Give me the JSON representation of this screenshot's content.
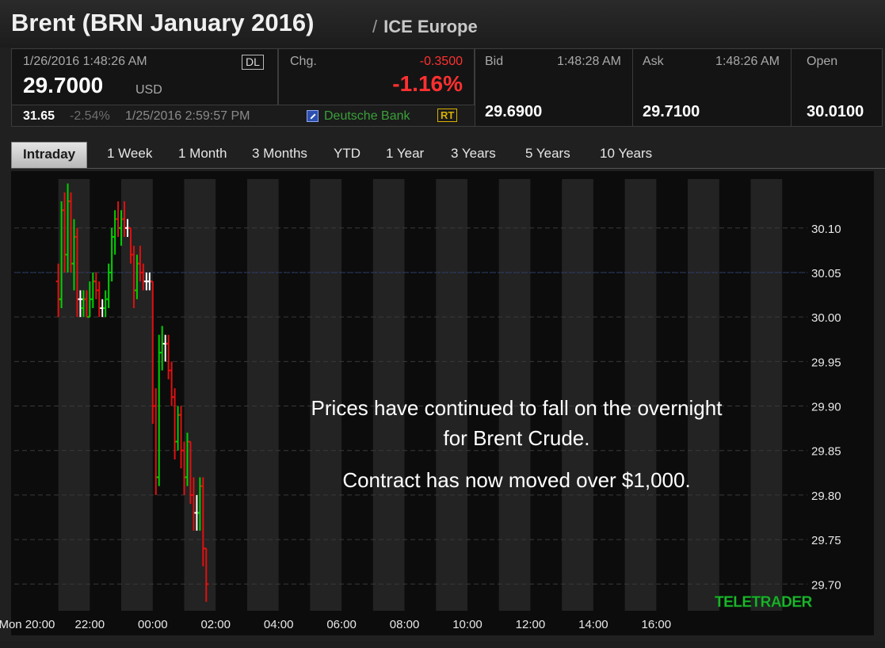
{
  "header": {
    "title": "Brent (BRN January 2016)",
    "separator": "/",
    "exchange": "ICE Europe"
  },
  "quote": {
    "last_timestamp": "1/26/2016 1:48:26 AM",
    "last_badge": "DL",
    "last_price": "29.7000",
    "currency": "USD",
    "change_label": "Chg.",
    "change_abs": "-0.3500",
    "change_pct": "-1.16%",
    "prev_close": "31.65",
    "prev_change_pct": "-2.54%",
    "prev_timestamp": "1/25/2016 2:59:57 PM",
    "source": "Deutsche Bank",
    "source_badge": "RT",
    "bid_label": "Bid",
    "bid_time": "1:48:28 AM",
    "bid": "29.6900",
    "ask_label": "Ask",
    "ask_time": "1:48:26 AM",
    "ask": "29.7100",
    "open_label": "Open",
    "open": "30.0100"
  },
  "tabs": [
    {
      "label": "Intraday",
      "active": true
    },
    {
      "label": "1 Week",
      "active": false
    },
    {
      "label": "1 Month",
      "active": false
    },
    {
      "label": "3 Months",
      "active": false
    },
    {
      "label": "YTD",
      "active": false
    },
    {
      "label": "1 Year",
      "active": false
    },
    {
      "label": "3 Years",
      "active": false
    },
    {
      "label": "5 Years",
      "active": false
    },
    {
      "label": "10 Years",
      "active": false
    }
  ],
  "annotation": {
    "line1": "Prices have continued to fall on the overnight",
    "line2": "for Brent Crude.",
    "line3": "Contract has now moved over $1,000."
  },
  "watermark": "TELETRADER",
  "colors": {
    "up": "#00d000",
    "down": "#e01010",
    "flat": "#ffffff",
    "reference_line": "#2d3f78",
    "negative": "#ff3030"
  },
  "chart_data": {
    "type": "ohlc",
    "x_tick_labels": [
      "Mon 20:00",
      "22:00",
      "00:00",
      "02:00",
      "04:00",
      "06:00",
      "08:00",
      "10:00",
      "12:00",
      "14:00",
      "16:00"
    ],
    "x_range_hours": [
      19.6,
      44.8
    ],
    "y_tick_labels": [
      "29.70",
      "29.75",
      "29.80",
      "29.85",
      "29.90",
      "29.95",
      "30.00",
      "30.05",
      "30.10"
    ],
    "y_ticks": [
      29.7,
      29.75,
      29.8,
      29.85,
      29.9,
      29.95,
      30.0,
      30.05,
      30.1
    ],
    "ylim": [
      29.67,
      30.155
    ],
    "reference_value": 30.05,
    "grid": "horizontal dashed",
    "bars": [
      {
        "t": 21.0,
        "o": 30.04,
        "h": 30.06,
        "l": 30.0,
        "c": 30.02
      },
      {
        "t": 21.1,
        "o": 30.02,
        "h": 30.13,
        "l": 30.01,
        "c": 30.12
      },
      {
        "t": 21.2,
        "o": 30.12,
        "h": 30.14,
        "l": 30.05,
        "c": 30.07
      },
      {
        "t": 21.3,
        "o": 30.07,
        "h": 30.15,
        "l": 30.05,
        "c": 30.13
      },
      {
        "t": 21.4,
        "o": 30.13,
        "h": 30.14,
        "l": 30.05,
        "c": 30.06
      },
      {
        "t": 21.5,
        "o": 30.06,
        "h": 30.11,
        "l": 30.03,
        "c": 30.09
      },
      {
        "t": 21.6,
        "o": 30.09,
        "h": 30.1,
        "l": 30.0,
        "c": 30.02
      },
      {
        "t": 21.7,
        "o": 30.02,
        "h": 30.03,
        "l": 30.0,
        "c": 30.02
      },
      {
        "t": 21.8,
        "o": 30.01,
        "h": 30.03,
        "l": 30.0,
        "c": 30.02
      },
      {
        "t": 21.9,
        "o": 30.02,
        "h": 30.03,
        "l": 30.0,
        "c": 30.0
      },
      {
        "t": 22.0,
        "o": 30.0,
        "h": 30.04,
        "l": 30.0,
        "c": 30.02
      },
      {
        "t": 22.1,
        "o": 30.02,
        "h": 30.05,
        "l": 30.01,
        "c": 30.04
      },
      {
        "t": 22.2,
        "o": 30.04,
        "h": 30.05,
        "l": 30.02,
        "c": 30.03
      },
      {
        "t": 22.3,
        "o": 30.03,
        "h": 30.04,
        "l": 30.0,
        "c": 30.01
      },
      {
        "t": 22.4,
        "o": 30.01,
        "h": 30.02,
        "l": 30.0,
        "c": 30.01
      },
      {
        "t": 22.5,
        "o": 30.01,
        "h": 30.03,
        "l": 30.0,
        "c": 30.02
      },
      {
        "t": 22.6,
        "o": 30.02,
        "h": 30.06,
        "l": 30.01,
        "c": 30.05
      },
      {
        "t": 22.7,
        "o": 30.05,
        "h": 30.1,
        "l": 30.04,
        "c": 30.09
      },
      {
        "t": 22.8,
        "o": 30.09,
        "h": 30.12,
        "l": 30.07,
        "c": 30.11
      },
      {
        "t": 22.9,
        "o": 30.11,
        "h": 30.13,
        "l": 30.09,
        "c": 30.1
      },
      {
        "t": 23.0,
        "o": 30.1,
        "h": 30.12,
        "l": 30.08,
        "c": 30.11
      },
      {
        "t": 23.1,
        "o": 30.11,
        "h": 30.13,
        "l": 30.09,
        "c": 30.1
      },
      {
        "t": 23.2,
        "o": 30.1,
        "h": 30.11,
        "l": 30.09,
        "c": 30.1
      },
      {
        "t": 23.3,
        "o": 30.1,
        "h": 30.1,
        "l": 30.06,
        "c": 30.07
      },
      {
        "t": 23.4,
        "o": 30.07,
        "h": 30.08,
        "l": 30.01,
        "c": 30.03
      },
      {
        "t": 23.5,
        "o": 30.03,
        "h": 30.07,
        "l": 30.02,
        "c": 30.06
      },
      {
        "t": 23.6,
        "o": 30.06,
        "h": 30.08,
        "l": 30.04,
        "c": 30.05
      },
      {
        "t": 23.7,
        "o": 30.05,
        "h": 30.06,
        "l": 30.03,
        "c": 30.04
      },
      {
        "t": 23.8,
        "o": 30.04,
        "h": 30.05,
        "l": 30.03,
        "c": 30.04
      },
      {
        "t": 23.9,
        "o": 30.04,
        "h": 30.05,
        "l": 30.03,
        "c": 30.04
      },
      {
        "t": 24.0,
        "o": 30.04,
        "h": 30.04,
        "l": 29.88,
        "c": 29.9
      },
      {
        "t": 24.1,
        "o": 29.9,
        "h": 29.92,
        "l": 29.8,
        "c": 29.82
      },
      {
        "t": 24.2,
        "o": 29.82,
        "h": 29.98,
        "l": 29.81,
        "c": 29.96
      },
      {
        "t": 24.3,
        "o": 29.96,
        "h": 29.99,
        "l": 29.94,
        "c": 29.97
      },
      {
        "t": 24.4,
        "o": 29.97,
        "h": 29.98,
        "l": 29.95,
        "c": 29.97
      },
      {
        "t": 24.5,
        "o": 29.97,
        "h": 29.98,
        "l": 29.93,
        "c": 29.94
      },
      {
        "t": 24.6,
        "o": 29.94,
        "h": 29.95,
        "l": 29.9,
        "c": 29.91
      },
      {
        "t": 24.7,
        "o": 29.91,
        "h": 29.92,
        "l": 29.84,
        "c": 29.86
      },
      {
        "t": 24.8,
        "o": 29.86,
        "h": 29.9,
        "l": 29.85,
        "c": 29.89
      },
      {
        "t": 24.9,
        "o": 29.89,
        "h": 29.9,
        "l": 29.83,
        "c": 29.85
      },
      {
        "t": 25.0,
        "o": 29.85,
        "h": 29.86,
        "l": 29.8,
        "c": 29.82
      },
      {
        "t": 25.1,
        "o": 29.82,
        "h": 29.87,
        "l": 29.81,
        "c": 29.86
      },
      {
        "t": 25.2,
        "o": 29.86,
        "h": 29.86,
        "l": 29.79,
        "c": 29.8
      },
      {
        "t": 25.3,
        "o": 29.8,
        "h": 29.82,
        "l": 29.76,
        "c": 29.78
      },
      {
        "t": 25.4,
        "o": 29.78,
        "h": 29.8,
        "l": 29.76,
        "c": 29.78
      },
      {
        "t": 25.5,
        "o": 29.78,
        "h": 29.82,
        "l": 29.76,
        "c": 29.81
      },
      {
        "t": 25.6,
        "o": 29.81,
        "h": 29.82,
        "l": 29.72,
        "c": 29.74
      },
      {
        "t": 25.7,
        "o": 29.74,
        "h": 29.74,
        "l": 29.68,
        "c": 29.7
      }
    ]
  }
}
